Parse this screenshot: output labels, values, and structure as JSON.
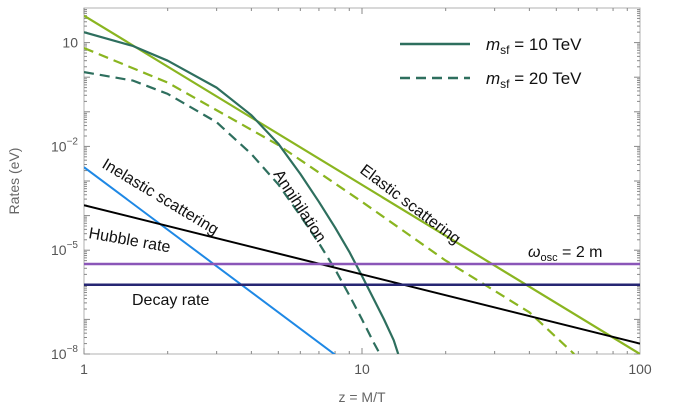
{
  "chart_data": {
    "type": "line",
    "xlabel": "z = M/T",
    "ylabel": "Rates (eV)",
    "xscale": "log",
    "yscale": "log",
    "xlim": [
      1,
      100
    ],
    "ylim": [
      1e-08,
      100
    ],
    "x_ticks": [
      {
        "value": 1,
        "label": "1"
      },
      {
        "value": 10,
        "label": "10"
      },
      {
        "value": 100,
        "label": "100"
      }
    ],
    "y_ticks": [
      {
        "value": 1e-08,
        "base": "10",
        "exp": "−8"
      },
      {
        "value": 1e-05,
        "base": "10",
        "exp": "−5"
      },
      {
        "value": 0.01,
        "base": "10",
        "exp": "−2"
      },
      {
        "value": 10,
        "base": "10",
        "exp": ""
      }
    ],
    "legend": {
      "placement": "top-right",
      "entries": [
        {
          "prefix": "m",
          "sub": "sf",
          "suffix": " = 10 TeV",
          "style": "solid",
          "color": "#2e6f5e"
        },
        {
          "prefix": "m",
          "sub": "sf",
          "suffix": " = 20 TeV",
          "style": "dashed",
          "color": "#2e6f5e"
        }
      ]
    },
    "series": [
      {
        "key": "elastic_10",
        "color": "#8ab520",
        "style": "solid",
        "width": 2.2,
        "points": [
          [
            1,
            60
          ],
          [
            100,
            1e-08
          ]
        ]
      },
      {
        "key": "elastic_20",
        "color": "#8ab520",
        "style": "dashed",
        "width": 2.2,
        "points": [
          [
            1,
            7
          ],
          [
            2,
            0.7
          ],
          [
            5,
            0.011
          ],
          [
            10,
            0.00025
          ],
          [
            20,
            5e-06
          ],
          [
            40,
            1.6e-07
          ],
          [
            58,
            1e-08
          ]
        ]
      },
      {
        "key": "annihilation_10",
        "color": "#2e6f5e",
        "style": "solid",
        "width": 2.2,
        "points": [
          [
            1,
            20
          ],
          [
            1.5,
            8
          ],
          [
            2,
            3
          ],
          [
            3,
            0.5
          ],
          [
            4,
            0.08
          ],
          [
            5,
            0.012
          ],
          [
            6,
            0.0016
          ],
          [
            7,
            0.00025
          ],
          [
            8,
            4.5e-05
          ],
          [
            9,
            9e-06
          ],
          [
            10,
            1.8e-06
          ],
          [
            11,
            4e-07
          ],
          [
            12,
            1e-07
          ],
          [
            13,
            2.5e-08
          ],
          [
            13.5,
            1e-08
          ]
        ]
      },
      {
        "key": "annihilation_20",
        "color": "#2e6f5e",
        "style": "dashed",
        "width": 2.2,
        "points": [
          [
            1,
            1.4
          ],
          [
            1.5,
            0.8
          ],
          [
            2,
            0.33
          ],
          [
            3,
            0.05
          ],
          [
            4,
            0.006
          ],
          [
            5,
            0.0008
          ],
          [
            6,
            0.0001
          ],
          [
            7,
            1.6e-05
          ],
          [
            8,
            2.8e-06
          ],
          [
            9,
            5e-07
          ],
          [
            10,
            1e-07
          ],
          [
            11,
            2.2e-08
          ],
          [
            11.6,
            1e-08
          ]
        ]
      },
      {
        "key": "inelastic",
        "color": "#1e88e5",
        "style": "solid",
        "width": 2,
        "points": [
          [
            1,
            0.0025
          ],
          [
            10,
            2.5e-09
          ]
        ]
      },
      {
        "key": "hubble",
        "color": "#000000",
        "style": "solid",
        "width": 2,
        "points": [
          [
            1,
            0.0002
          ],
          [
            100,
            2e-08
          ]
        ]
      },
      {
        "key": "omega_osc",
        "color": "#8a56b8",
        "style": "solid",
        "width": 2.5,
        "points": [
          [
            1,
            4e-06
          ],
          [
            100,
            4e-06
          ]
        ]
      },
      {
        "key": "decay",
        "color": "#262673",
        "style": "solid",
        "width": 2.5,
        "points": [
          [
            1,
            1e-06
          ],
          [
            100,
            1e-06
          ]
        ]
      }
    ],
    "annotations": {
      "elastic": "Elastic scattering",
      "annihilation": "Annihilation",
      "inelastic": "Inelastic scattering",
      "hubble": "Hubble rate",
      "decay": "Decay rate",
      "omega_symbol": "ω",
      "omega_sub": "osc",
      "omega_suffix": " = 2 m"
    }
  }
}
